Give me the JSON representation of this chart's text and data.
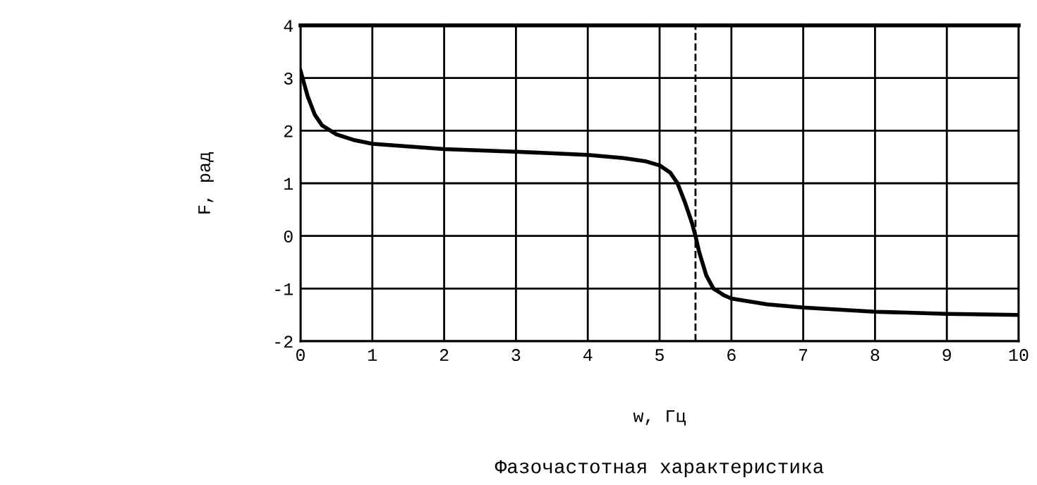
{
  "chart_data": {
    "type": "line",
    "title": "Фазочастотная характеристика",
    "xlabel": "w, Гц",
    "ylabel": "F, рад",
    "x": [
      0,
      0.1,
      0.2,
      0.3,
      0.5,
      0.75,
      1,
      1.5,
      2,
      3,
      4,
      4.5,
      4.8,
      5,
      5.15,
      5.25,
      5.35,
      5.45,
      5.5,
      5.55,
      5.65,
      5.75,
      5.9,
      6,
      6.5,
      7,
      8,
      9,
      10
    ],
    "series": [
      {
        "color": "#000000",
        "values": [
          3.14,
          2.65,
          2.3,
          2.1,
          1.93,
          1.82,
          1.75,
          1.7,
          1.65,
          1.6,
          1.54,
          1.48,
          1.42,
          1.34,
          1.2,
          1.0,
          0.65,
          0.25,
          0,
          -0.3,
          -0.75,
          -1.0,
          -1.13,
          -1.19,
          -1.3,
          -1.36,
          -1.44,
          -1.48,
          -1.5
        ]
      }
    ],
    "xlim": [
      0,
      10
    ],
    "ylim": [
      -2,
      4
    ],
    "xticks": [
      0,
      1,
      2,
      3,
      4,
      5,
      6,
      7,
      8,
      9,
      10
    ],
    "yticks": [
      -2,
      -1,
      0,
      1,
      2,
      3,
      4
    ],
    "grid": true,
    "line_style": "solid",
    "ref_lines": [
      {
        "axis": "x",
        "value": 5.5,
        "color": "#000000",
        "line_style": "dashed"
      }
    ]
  }
}
